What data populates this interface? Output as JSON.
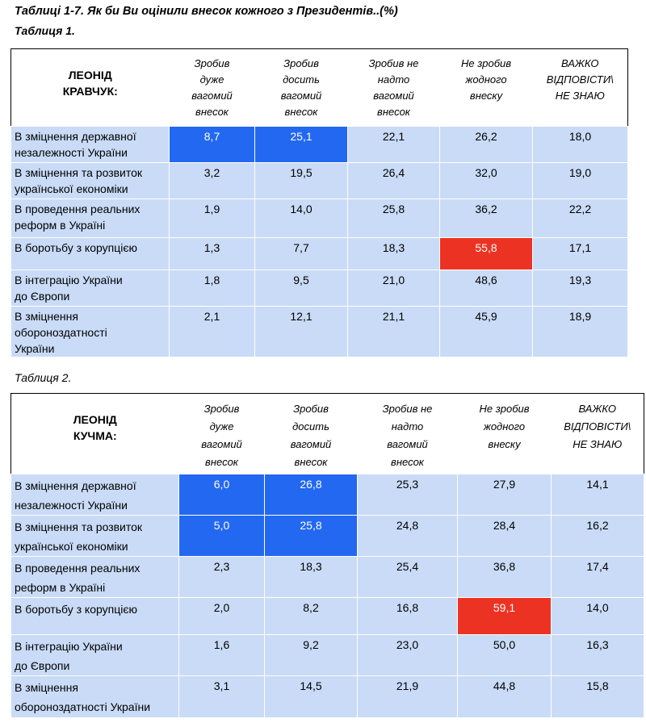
{
  "title": "Таблиці 1-7. Як би Ви оцінили внесок кожного з Президентів..(%)",
  "colors": {
    "highlight_blue": "#2368f0",
    "highlight_red": "#ec3323",
    "row_bg": "#c9dbf6"
  },
  "tables": [
    {
      "caption": "Таблиця 1.",
      "president": [
        "ЛЕОНІД",
        "КРАВЧУК:"
      ],
      "columns": [
        [
          "Зробив",
          "дуже",
          "вагомий",
          "внесок"
        ],
        [
          "Зробив",
          "досить",
          "вагомий",
          "внесок"
        ],
        [
          "Зробив не",
          "надто",
          "вагомий",
          "внесок"
        ],
        [
          "Не зробив",
          "жодного",
          "внеску"
        ],
        [
          "ВАЖКО",
          "ВІДПОВІСТИ\\",
          "НЕ ЗНАЮ"
        ]
      ],
      "rows": [
        {
          "label": [
            "В зміцнення державної",
            "незалежності України"
          ],
          "values": [
            "8,7",
            "25,1",
            "22,1",
            "26,2",
            "18,0"
          ],
          "hl": [
            "blue",
            "blue",
            "",
            "",
            ""
          ]
        },
        {
          "label": [
            "В зміцнення та розвиток",
            "української економіки"
          ],
          "values": [
            "3,2",
            "19,5",
            "26,4",
            "32,0",
            "19,0"
          ],
          "hl": [
            "",
            "",
            "",
            "",
            ""
          ]
        },
        {
          "label": [
            "В проведення реальних",
            "реформ в Україні"
          ],
          "values": [
            "1,9",
            "14,0",
            "25,8",
            "36,2",
            "22,2"
          ],
          "hl": [
            "",
            "",
            "",
            "",
            ""
          ]
        },
        {
          "label": [
            "В боротьбу з корупцією"
          ],
          "values": [
            "1,3",
            "7,7",
            "18,3",
            "55,8",
            "17,1"
          ],
          "hl": [
            "",
            "",
            "",
            "red",
            ""
          ]
        },
        {
          "label": [
            "В інтеграцію України",
            "до Європи"
          ],
          "values": [
            "1,8",
            "9,5",
            "21,0",
            "48,6",
            "19,3"
          ],
          "hl": [
            "",
            "",
            "",
            "",
            ""
          ]
        },
        {
          "label": [
            "В зміцнення",
            "обороноздатності",
            "України"
          ],
          "values": [
            "2,1",
            "12,1",
            "21,1",
            "45,9",
            "18,9"
          ],
          "hl": [
            "",
            "",
            "",
            "",
            ""
          ]
        }
      ]
    },
    {
      "caption": "Таблиця 2.",
      "president": [
        "ЛЕОНІД",
        "КУЧМА:"
      ],
      "columns": [
        [
          "Зробив",
          "дуже",
          "вагомий",
          "внесок"
        ],
        [
          "Зробив",
          "досить",
          "вагомий",
          "внесок"
        ],
        [
          "Зробив не",
          "надто",
          "вагомий",
          "внесок"
        ],
        [
          "Не зробив",
          "жодного",
          "внеску"
        ],
        [
          "ВАЖКО",
          "ВІДПОВІСТИ\\",
          "НЕ ЗНАЮ"
        ]
      ],
      "rows": [
        {
          "label": [
            "В зміцнення державної",
            "незалежності України"
          ],
          "values": [
            "6,0",
            "26,8",
            "25,3",
            "27,9",
            "14,1"
          ],
          "hl": [
            "blue",
            "blue",
            "",
            "",
            ""
          ]
        },
        {
          "label": [
            "В зміцнення та розвиток",
            "української економіки"
          ],
          "values": [
            "5,0",
            "25,8",
            "24,8",
            "28,4",
            "16,2"
          ],
          "hl": [
            "blue",
            "blue",
            "",
            "",
            ""
          ]
        },
        {
          "label": [
            "В проведення реальних",
            "реформ в Україні"
          ],
          "values": [
            "2,3",
            "18,3",
            "25,4",
            "36,8",
            "17,4"
          ],
          "hl": [
            "",
            "",
            "",
            "",
            ""
          ]
        },
        {
          "label": [
            "В боротьбу з корупцією"
          ],
          "values": [
            "2,0",
            "8,2",
            "16,8",
            "59,1",
            "14,0"
          ],
          "hl": [
            "",
            "",
            "",
            "red",
            ""
          ]
        },
        {
          "label": [
            "В інтеграцію України",
            "до Європи"
          ],
          "values": [
            "1,6",
            "9,2",
            "23,0",
            "50,0",
            "16,3"
          ],
          "hl": [
            "",
            "",
            "",
            "",
            ""
          ]
        },
        {
          "label": [
            "В зміцнення",
            "обороноздатності України"
          ],
          "values": [
            "3,1",
            "14,5",
            "21,9",
            "44,8",
            "15,8"
          ],
          "hl": [
            "",
            "",
            "",
            "",
            ""
          ]
        }
      ]
    }
  ]
}
